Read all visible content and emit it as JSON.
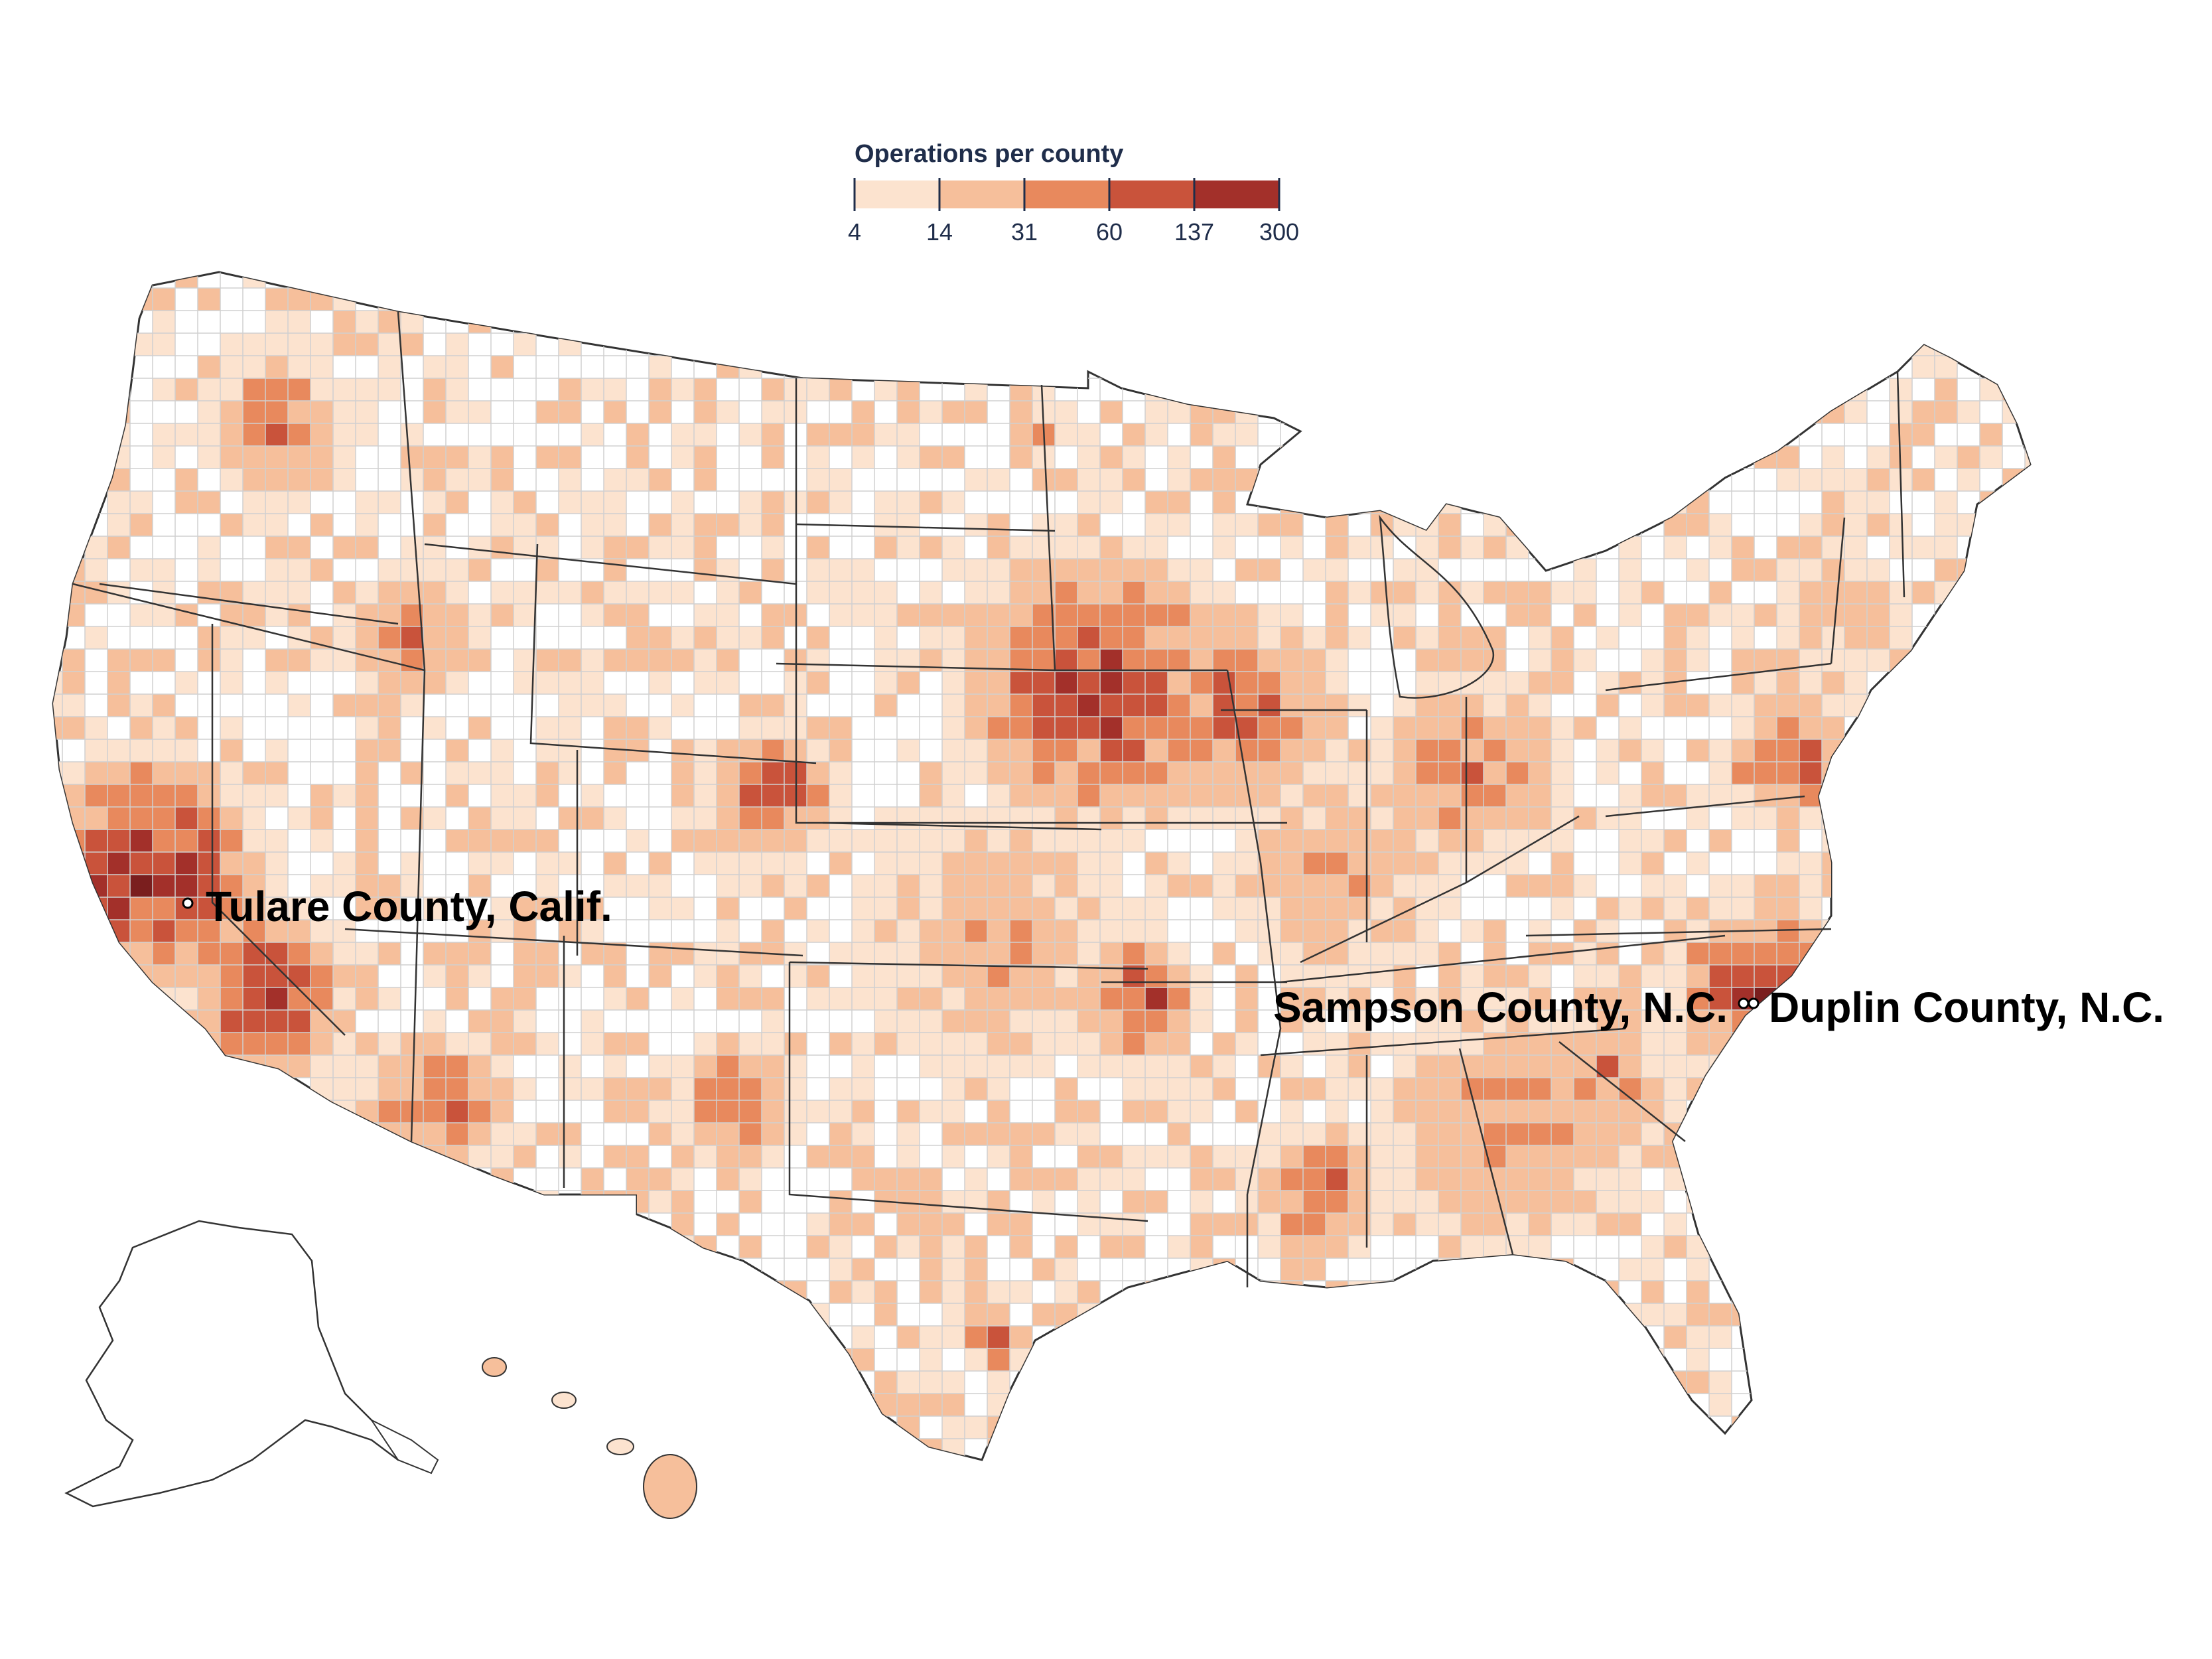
{
  "legend": {
    "title": "Operations per county",
    "ticks": [
      "4",
      "14",
      "31",
      "60",
      "137",
      "300"
    ],
    "colors": [
      "#fce3cf",
      "#f6bf9b",
      "#e8895d",
      "#c9533b",
      "#a3302a",
      "#7a1e1e"
    ]
  },
  "colors": {
    "background": "#ffffff",
    "state_border": "#333333",
    "county_border": "#cfcfcf",
    "label_text": "#000000",
    "legend_text": "#1f2d4a"
  },
  "callouts": [
    {
      "label": "Tulare County, Calif.",
      "state": "California"
    },
    {
      "label": "Sampson County, N.C.",
      "state": "North Carolina"
    },
    {
      "label": "Duplin County, N.C.",
      "state": "North Carolina"
    }
  ]
}
